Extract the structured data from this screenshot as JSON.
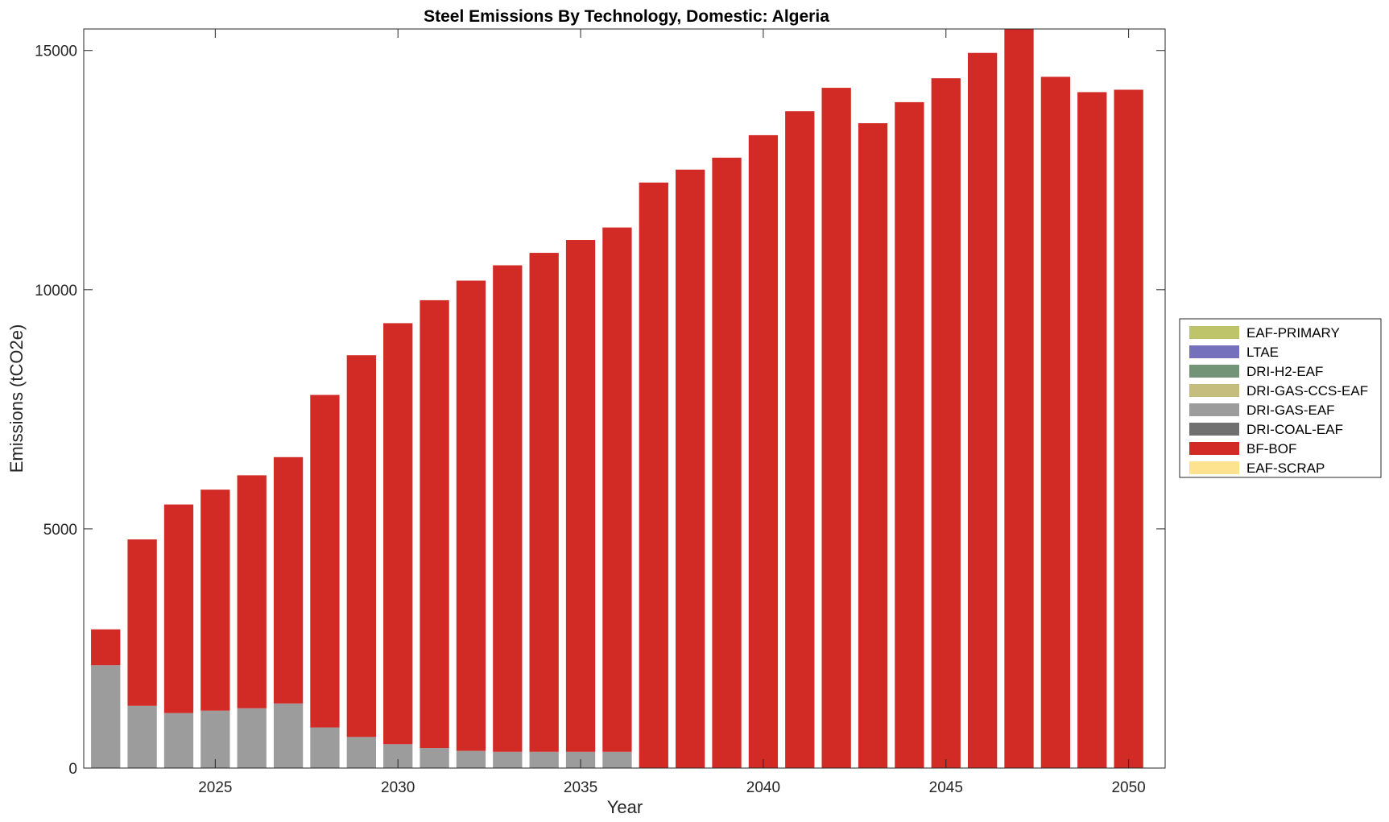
{
  "chart_data": {
    "type": "bar",
    "stacked": true,
    "title": "Steel Emissions By Technology, Domestic: Algeria",
    "xlabel": "Year",
    "ylabel": "Emissions (tCO2e)",
    "xlim": [
      2021.4,
      2051
    ],
    "ylim": [
      0,
      15450
    ],
    "xticks": [
      2025,
      2030,
      2035,
      2040,
      2045,
      2050
    ],
    "yticks": [
      0,
      5000,
      10000,
      15000
    ],
    "legend_position": "right",
    "categories": [
      2022,
      2023,
      2024,
      2025,
      2026,
      2027,
      2028,
      2029,
      2030,
      2031,
      2032,
      2033,
      2034,
      2035,
      2036,
      2037,
      2038,
      2039,
      2040,
      2041,
      2042,
      2043,
      2044,
      2045,
      2046,
      2047,
      2048,
      2049,
      2050
    ],
    "series": [
      {
        "name": "EAF-PRIMARY",
        "color": "#bdc46a",
        "values": [
          0,
          0,
          0,
          0,
          0,
          0,
          0,
          0,
          0,
          0,
          0,
          0,
          0,
          0,
          0,
          0,
          0,
          0,
          0,
          0,
          0,
          0,
          0,
          0,
          0,
          0,
          0,
          0,
          0
        ]
      },
      {
        "name": "LTAE",
        "color": "#7570bb",
        "values": [
          0,
          0,
          0,
          0,
          0,
          0,
          0,
          0,
          0,
          0,
          0,
          0,
          0,
          0,
          0,
          0,
          0,
          0,
          0,
          0,
          0,
          0,
          0,
          0,
          0,
          0,
          0,
          0,
          0
        ]
      },
      {
        "name": "DRI-H2-EAF",
        "color": "#739477",
        "values": [
          0,
          0,
          0,
          0,
          0,
          0,
          0,
          0,
          0,
          0,
          0,
          0,
          0,
          0,
          0,
          0,
          0,
          0,
          0,
          0,
          0,
          0,
          0,
          0,
          0,
          0,
          0,
          0,
          0
        ]
      },
      {
        "name": "DRI-GAS-CCS-EAF",
        "color": "#c5bd7e",
        "values": [
          0,
          0,
          0,
          0,
          0,
          0,
          0,
          0,
          0,
          0,
          0,
          0,
          0,
          0,
          0,
          0,
          0,
          0,
          0,
          0,
          0,
          0,
          0,
          0,
          0,
          0,
          0,
          0,
          0
        ]
      },
      {
        "name": "DRI-GAS-EAF",
        "color": "#9c9c9c",
        "values": [
          2150,
          1300,
          1150,
          1200,
          1250,
          1350,
          850,
          650,
          500,
          420,
          360,
          340,
          340,
          340,
          340,
          0,
          0,
          0,
          0,
          0,
          0,
          0,
          0,
          0,
          0,
          0,
          0,
          0,
          0
        ]
      },
      {
        "name": "DRI-COAL-EAF",
        "color": "#707070",
        "values": [
          0,
          0,
          0,
          0,
          0,
          0,
          0,
          0,
          0,
          0,
          0,
          0,
          0,
          0,
          0,
          0,
          0,
          0,
          0,
          0,
          0,
          0,
          0,
          0,
          0,
          0,
          0,
          0,
          0
        ]
      },
      {
        "name": "BF-BOF",
        "color": "#d22a25",
        "values": [
          750,
          3480,
          4360,
          4620,
          4870,
          5150,
          6950,
          7980,
          8800,
          9360,
          9830,
          10170,
          10430,
          10700,
          10960,
          12240,
          12510,
          12760,
          13230,
          13730,
          14220,
          13480,
          13920,
          14420,
          14950,
          15450,
          14450,
          14130,
          14180
        ]
      },
      {
        "name": "EAF-SCRAP",
        "color": "#fde38f",
        "values": [
          0,
          0,
          0,
          0,
          0,
          0,
          0,
          0,
          0,
          0,
          0,
          0,
          0,
          0,
          0,
          0,
          0,
          0,
          0,
          0,
          0,
          0,
          0,
          0,
          0,
          0,
          0,
          0,
          0
        ]
      }
    ]
  }
}
